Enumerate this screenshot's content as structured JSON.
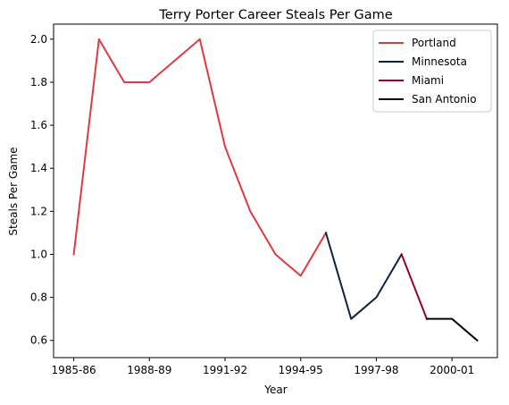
{
  "chart_data": {
    "type": "line",
    "title": "Terry Porter Career Steals Per Game",
    "xlabel": "Year",
    "ylabel": "Steals Per Game",
    "x_tick_labels": [
      "1985-86",
      "1988-89",
      "1991-92",
      "1994-95",
      "1997-98",
      "2000-01"
    ],
    "y_ticks": [
      0.6,
      0.8,
      1.0,
      1.2,
      1.4,
      1.6,
      1.8,
      2.0
    ],
    "ylim": [
      0.52,
      2.07
    ],
    "grid": false,
    "legend_position": "top-right",
    "series": [
      {
        "name": "Portland",
        "color": "#e03a3e",
        "x": [
          "1985-86",
          "1986-87",
          "1987-88",
          "1988-89",
          "1989-90",
          "1990-91",
          "1991-92",
          "1992-93",
          "1993-94",
          "1994-95",
          "1995-96"
        ],
        "values": [
          1.0,
          2.0,
          1.8,
          1.8,
          1.9,
          2.0,
          1.5,
          1.2,
          1.0,
          0.9,
          1.1
        ]
      },
      {
        "name": "Minnesota",
        "color": "#0c2340",
        "x": [
          "1995-96",
          "1996-97",
          "1997-98",
          "1998-99"
        ],
        "values": [
          1.1,
          0.7,
          0.8,
          1.0
        ]
      },
      {
        "name": "Miami",
        "color": "#98002e",
        "x": [
          "1998-99",
          "1999-00"
        ],
        "values": [
          1.0,
          0.7
        ]
      },
      {
        "name": "San Antonio",
        "color": "#000000",
        "x": [
          "1999-00",
          "2000-01",
          "2001-02"
        ],
        "values": [
          0.7,
          0.7,
          0.6
        ]
      }
    ]
  }
}
